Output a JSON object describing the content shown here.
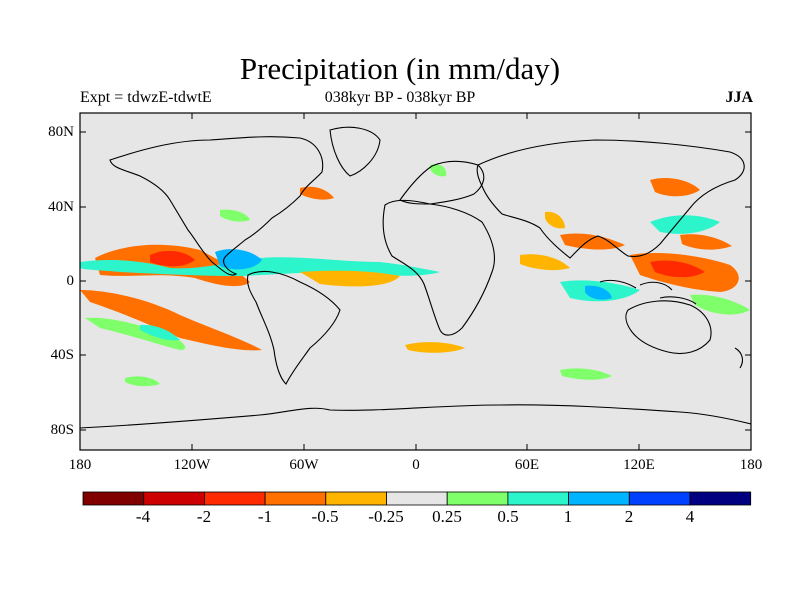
{
  "title": "Precipitation (in mm/day)",
  "subtitle_left": "Expt = tdwzE-tdwtE",
  "subtitle_center": "038kyr BP - 038kyr BP",
  "subtitle_right": "JJA",
  "lat_ticks": [
    "80N",
    "40N",
    "0",
    "40S",
    "80S"
  ],
  "lon_ticks": [
    "180",
    "120W",
    "60W",
    "0",
    "60E",
    "120E",
    "180"
  ],
  "colorbar": {
    "labels": [
      "-4",
      "-2",
      "-1",
      "-0.5",
      "-0.25",
      "0.25",
      "0.5",
      "1",
      "2",
      "4"
    ],
    "colors": [
      "#800000",
      "#cc0000",
      "#ff2a00",
      "#ff7000",
      "#ffb400",
      "#e6e6e6",
      "#7fff6a",
      "#2cf5cc",
      "#00b4ff",
      "#0040ff",
      "#000080"
    ]
  },
  "colors": {
    "ocean_land_background": "#e6e6e6",
    "coastline": "#000000"
  }
}
